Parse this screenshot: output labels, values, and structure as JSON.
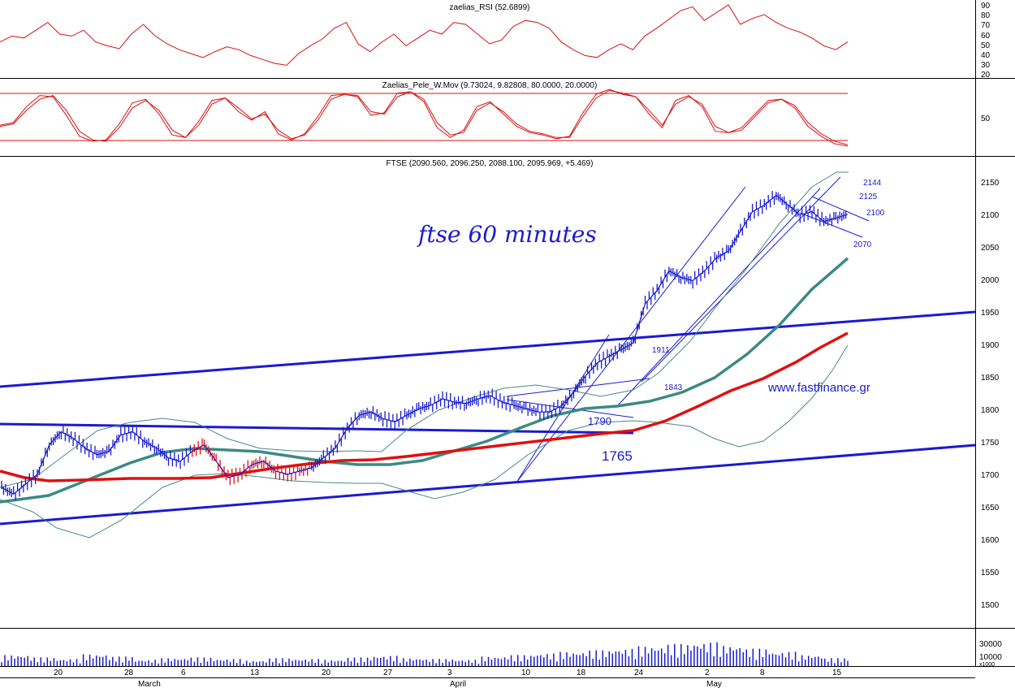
{
  "panels": {
    "rsi": {
      "title": "zaelias_RSI (52.6899)",
      "ticks": [
        "90",
        "80",
        "70",
        "60",
        "50",
        "40",
        "30",
        "20"
      ]
    },
    "stoch": {
      "title": "Zaelias_Pele_W.Mov (9.73024, 9.82808, 80.0000, 20.0000)",
      "ticks": [
        "50"
      ]
    },
    "main": {
      "title": "FTSE (2090.560, 2096.250, 2088.100, 2095.969, +5.469)",
      "ticks": [
        "2150",
        "2100",
        "2050",
        "2000",
        "1950",
        "1900",
        "1850",
        "1800",
        "1750",
        "1700",
        "1650",
        "1600",
        "1550",
        "1500"
      ],
      "handwritten": "ftse 60 minutes",
      "website": "www.fastfinance.gr",
      "labels": [
        "1911",
        "1843",
        "1790",
        "1765",
        "2144",
        "2125",
        "2100",
        "2070"
      ]
    },
    "volume": {
      "ticks": [
        "30000",
        "10000"
      ],
      "multiplier": "x1000"
    }
  },
  "xaxis": {
    "days": [
      "20",
      "28",
      "6",
      "13",
      "20",
      "27",
      "3",
      "10",
      "18",
      "24",
      "2",
      "8",
      "15"
    ],
    "months": [
      "March",
      "April",
      "May"
    ]
  },
  "colors": {
    "price": "#1a1ad0",
    "price_down": "#e01010",
    "ma_red": "#e01010",
    "ma_teal": "#3a8a86",
    "band": "#4a8a86",
    "channel": "#1a1ad0",
    "rsi": "#d81010",
    "stoch": "#d81010"
  },
  "chart_data": [
    {
      "type": "line",
      "title": "zaelias_RSI (52.6899)",
      "ylim": [
        15,
        95
      ],
      "series": [
        {
          "values": [
            52,
            58,
            56,
            64,
            72,
            60,
            58,
            64,
            52,
            48,
            45,
            60,
            70,
            58,
            50,
            44,
            40,
            36,
            42,
            47,
            44,
            38,
            34,
            30,
            28,
            40,
            48,
            55,
            66,
            72,
            50,
            42,
            52,
            60,
            48,
            56,
            64,
            60,
            72,
            70,
            60,
            50,
            54,
            68,
            74,
            72,
            66,
            52,
            44,
            38,
            36,
            44,
            50,
            44,
            58,
            66,
            75,
            84,
            88,
            74,
            82,
            90,
            70,
            76,
            80,
            72,
            66,
            62,
            56,
            48,
            44,
            52
          ]
        }
      ]
    },
    {
      "type": "line",
      "title": "Zaelias_Pele_W.Mov (9.73024, 9.82808, 80.0000, 20.0000)",
      "ylim": [
        0,
        100
      ],
      "series": [
        {
          "values": [
            42,
            46,
            72,
            90,
            88,
            58,
            24,
            16,
            18,
            44,
            78,
            84,
            60,
            26,
            22,
            48,
            82,
            86,
            64,
            50,
            64,
            28,
            18,
            28,
            56,
            90,
            92,
            88,
            58,
            62,
            94,
            96,
            80,
            38,
            22,
            34,
            72,
            80,
            60,
            40,
            30,
            26,
            20,
            24,
            62,
            92,
            100,
            92,
            88,
            60,
            38,
            82,
            90,
            72,
            32,
            30,
            38,
            60,
            82,
            84,
            70,
            40,
            24,
            12,
            8
          ]
        },
        {
          "values": [
            40,
            44,
            66,
            84,
            90,
            66,
            32,
            18,
            16,
            38,
            70,
            82,
            66,
            34,
            22,
            42,
            76,
            86,
            70,
            52,
            60,
            34,
            20,
            26,
            50,
            84,
            92,
            90,
            64,
            60,
            88,
            96,
            84,
            46,
            26,
            30,
            66,
            78,
            64,
            44,
            32,
            28,
            22,
            22,
            56,
            86,
            98,
            94,
            88,
            66,
            42,
            76,
            88,
            76,
            40,
            30,
            34,
            56,
            78,
            84,
            74,
            46,
            28,
            16,
            10
          ]
        }
      ],
      "reference_lines": [
        80,
        20
      ]
    },
    {
      "type": "line",
      "title": "FTSE (2090.560, 2096.250, 2088.100, 2095.969, +5.469)",
      "ylim": [
        1470,
        2165
      ],
      "series": [
        {
          "values": [
            1680,
            1670,
            1685,
            1700,
            1745,
            1765,
            1755,
            1740,
            1730,
            1735,
            1760,
            1765,
            1750,
            1740,
            1725,
            1720,
            1735,
            1745,
            1720,
            1695,
            1700,
            1715,
            1720,
            1705,
            1700,
            1705,
            1710,
            1725,
            1740,
            1770,
            1790,
            1795,
            1785,
            1780,
            1790,
            1800,
            1805,
            1815,
            1810,
            1808,
            1815,
            1820,
            1810,
            1805,
            1800,
            1795,
            1795,
            1805,
            1825,
            1850,
            1870,
            1880,
            1890,
            1900,
            1960,
            1980,
            2010,
            2000,
            1995,
            2010,
            2030,
            2040,
            2070,
            2100,
            2110,
            2125,
            2110,
            2095,
            2100,
            2085,
            2090,
            2096
          ]
        },
        {
          "name": "",
          "values": [
            1700,
            1690,
            1690,
            1692,
            1696,
            1700,
            1710,
            1718,
            1720,
            1718,
            1714,
            1716,
            1722,
            1730,
            1738,
            1748,
            1756,
            1764,
            1774,
            1790,
            1820,
            1860,
            1888,
            1903,
            1916
          ]
        },
        {
          "name": "",
          "values": [
            1655,
            1660,
            1685,
            1708,
            1730,
            1735,
            1728,
            1722,
            1725,
            1740,
            1760,
            1772,
            1782,
            1788,
            1810,
            1845,
            1900,
            1940,
            1990,
            2030
          ]
        }
      ]
    },
    {
      "type": "bar",
      "ylim": [
        0,
        45000
      ],
      "values": [
        14000,
        11000,
        9000,
        15000,
        12000,
        8000,
        10000,
        11000,
        9000,
        7000,
        10000,
        9000,
        8000,
        11000,
        13000,
        10000,
        9000,
        8000,
        12000,
        14000,
        16000,
        18000,
        20000,
        22000,
        25000,
        28000,
        30000,
        26000,
        22000,
        18000,
        14000,
        10000
      ]
    }
  ]
}
